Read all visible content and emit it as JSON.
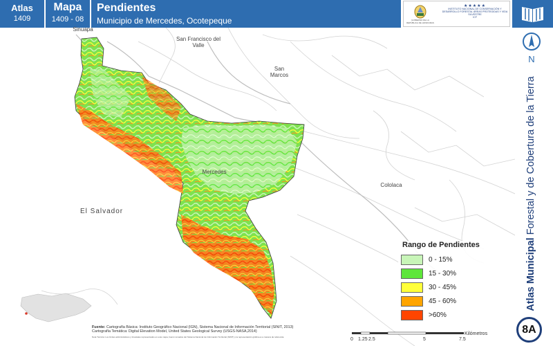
{
  "header": {
    "atlas_label": "Atlas",
    "atlas_number": "1409",
    "mapa_label": "Mapa",
    "mapa_number": "1409 - 08",
    "title": "Pendientes",
    "subtitle": "Municipio de Mercedes, Ocotepeque",
    "logo_left_text": "GOBIERNO DE LA REPÚBLICA DE HONDURAS",
    "logo_right_text": "INSTITUTO NACIONAL DE CONSERVACIÓN Y DESARROLLO FORESTAL ÁREAS PROTEGIDAS Y VIDA SILVESTRE",
    "logo_right_abbr": "ICF"
  },
  "map": {
    "places": {
      "sinuapa": "Sinuapa",
      "san_francisco": "San Francisco del Valle",
      "san_marcos": "San Marcos",
      "mercedes": "Mercedes",
      "cololaca": "Cololaca",
      "el_salvador": "El Salvador"
    }
  },
  "legend": {
    "title": "Rango de Pendientes",
    "items": [
      {
        "label": "0 - 15%",
        "color": "#c8f5b8"
      },
      {
        "label": "15 - 30%",
        "color": "#5ee63a"
      },
      {
        "label": "30 - 45%",
        "color": "#ffff3a"
      },
      {
        "label": "45 - 60%",
        "color": "#ffa500"
      },
      {
        "label": ">60%",
        "color": "#ff4500"
      }
    ]
  },
  "north_label": "N",
  "side_title_bold": "Atlas Municipal",
  "side_title_rest": " Forestal y de Cobertura de la Tierra",
  "badge": "8A",
  "source": {
    "label": "Fuente:",
    "line1": "Cartografía Básica: Instituto Geográfico Nacional (IGN), Sistema Nacional de Información Territorial (SINIT, 2013)",
    "line2": "Cartografía Temática: Digital Elevation Model, United States Geological Survey (USGS-NASA,2014)",
    "note": "Nota Técnica: Los límites administrativos y forestales representados en este mapa, fueron tomados del Sistema Nacional de Información Territorial (SINIT) y la representación gráfica es a manera de referencia."
  },
  "scale": {
    "ticks": [
      "0",
      "1.25",
      "2.5",
      "5",
      "7.5"
    ],
    "unit": "Kilómetros"
  }
}
